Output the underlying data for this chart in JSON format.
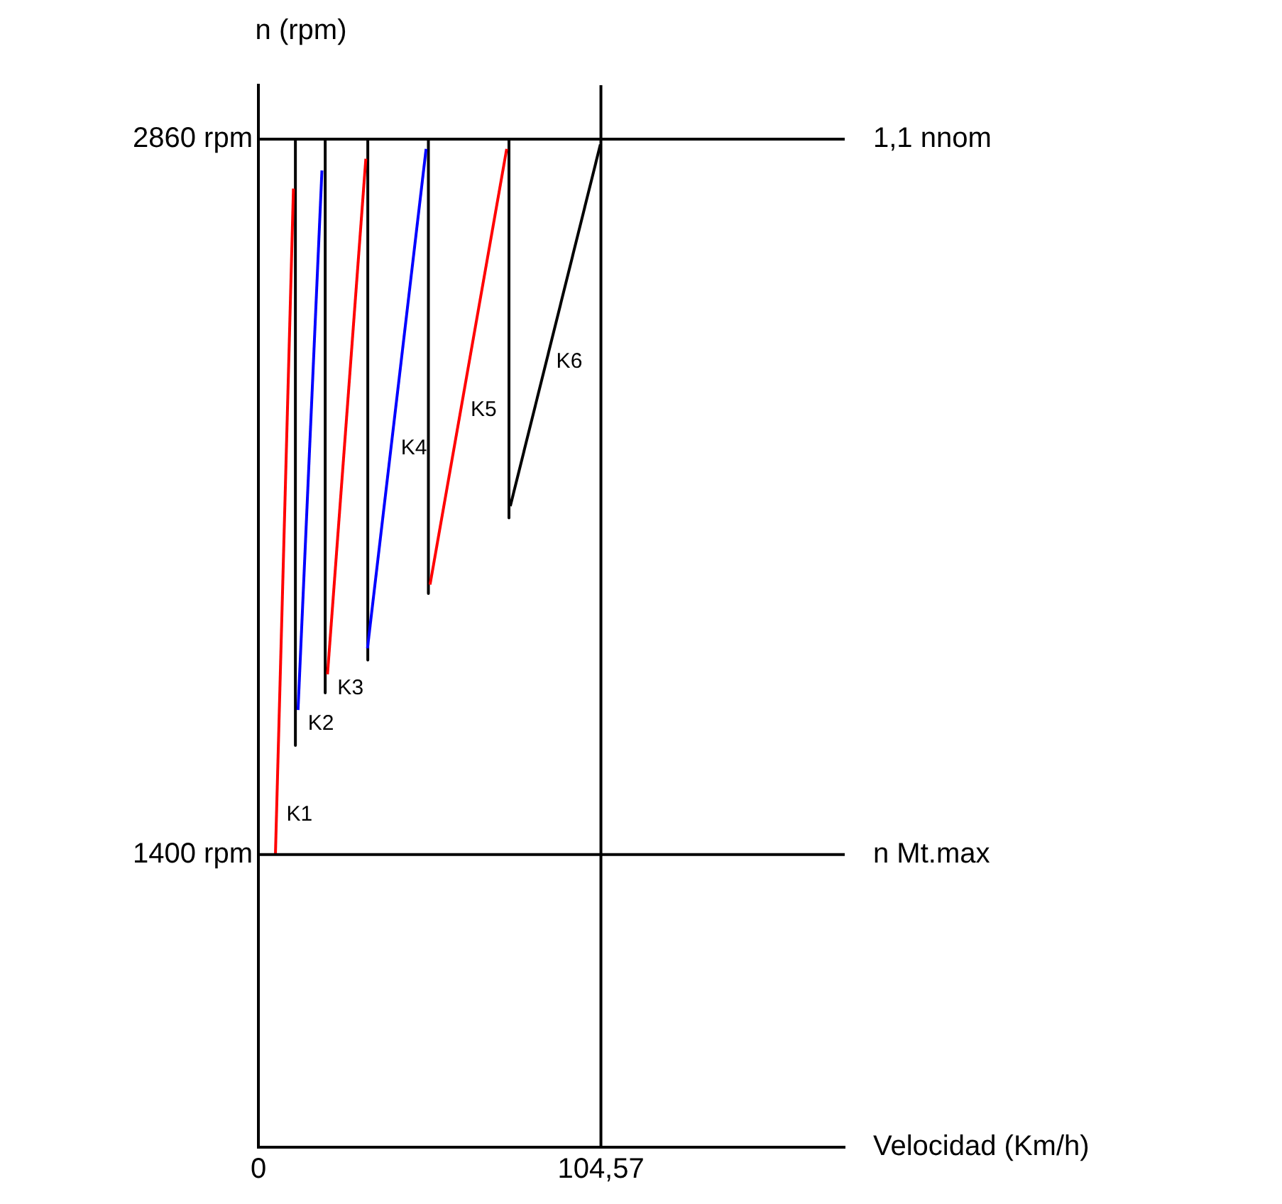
{
  "chart_data": {
    "type": "line",
    "xlabel": "Velocidad (Km/h)",
    "ylabel": "n (rpm)",
    "xlim": [
      0,
      179
    ],
    "ylim": [
      803,
      2970
    ],
    "xticks": [
      0,
      {
        "value": 104.57,
        "label": "104,57"
      }
    ],
    "yticks": [
      {
        "value": 1400,
        "label": "1400 rpm"
      },
      {
        "value": 2860,
        "label": "2860 rpm"
      }
    ],
    "series": [
      {
        "name": "K1",
        "color": "#ff0000",
        "x": [
          5.2,
          10.7
        ],
        "values": [
          1400,
          2759
        ]
      },
      {
        "name": "K2",
        "color": "#0000ff",
        "x": [
          12.1,
          19.4
        ],
        "values": [
          1695,
          2796
        ]
      },
      {
        "name": "K3",
        "color": "#ff0000",
        "x": [
          21.1,
          32.8
        ],
        "values": [
          1768,
          2820
        ]
      },
      {
        "name": "K4",
        "color": "#0000ff",
        "x": [
          33.3,
          51.2
        ],
        "values": [
          1821,
          2840
        ]
      },
      {
        "name": "K5",
        "color": "#ff0000",
        "x": [
          52.4,
          75.8
        ],
        "values": [
          1951,
          2840
        ]
      },
      {
        "name": "K6",
        "color": "#000000",
        "x": [
          76.9,
          104.4
        ],
        "values": [
          2111,
          2849
        ]
      },
      {
        "color": "#000000",
        "x": [
          11.3,
          11.3
        ],
        "values": [
          2860,
          1623
        ]
      },
      {
        "color": "#000000",
        "x": [
          20.4,
          20.4
        ],
        "values": [
          2860,
          1730
        ]
      },
      {
        "color": "#000000",
        "x": [
          33.4,
          33.4
        ],
        "values": [
          2860,
          1797
        ]
      },
      {
        "color": "#000000",
        "x": [
          51.9,
          51.9
        ],
        "values": [
          2860,
          1933
        ]
      },
      {
        "color": "#000000",
        "x": [
          76.5,
          76.5
        ],
        "values": [
          2860,
          2087
        ]
      }
    ],
    "ref_lines": [
      {
        "axis": "y",
        "value": 2860,
        "label": "1,1 nnom",
        "color": "#000000"
      },
      {
        "axis": "y",
        "value": 1400,
        "label": "n Mt.max",
        "color": "#000000"
      },
      {
        "axis": "x",
        "value": 104.57,
        "color": "#000000"
      }
    ],
    "legend": false,
    "marker": "none",
    "line_style": "solid"
  }
}
